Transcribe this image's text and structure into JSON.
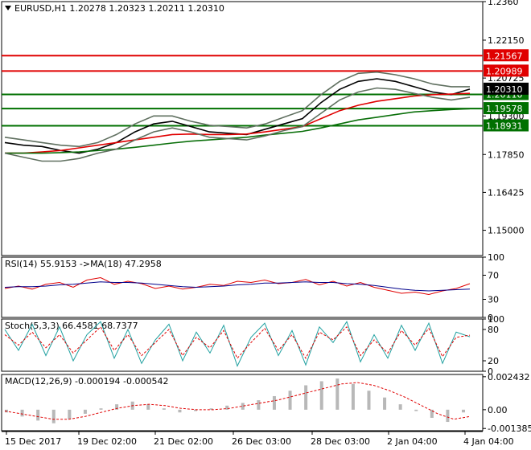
{
  "symbol_header": "EURUSD,H1  1.20278 1.20323 1.20211 1.20310",
  "chart_data": [
    {
      "type": "line",
      "title": "EURUSD,H1",
      "ohlc": {
        "open": 1.20278,
        "high": 1.20323,
        "low": 1.20211,
        "close": 1.2031
      },
      "ylim": [
        1.1405,
        1.236
      ],
      "y_ticks": [
        1.236,
        1.2215,
        1.20725,
        1.193,
        1.1785,
        1.16425,
        1.15
      ],
      "x_ticks": [
        "15 Dec 2017",
        "19 Dec 02:00",
        "21 Dec 02:00",
        "26 Dec 03:00",
        "28 Dec 03:00",
        "2 Jan 04:00",
        "4 Jan 04:00"
      ],
      "levels": [
        {
          "value": 1.21567,
          "color": "#e00000"
        },
        {
          "value": 1.20989,
          "color": "#e00000"
        },
        {
          "value": 1.2011,
          "color": "#007000"
        },
        {
          "value": 1.19578,
          "color": "#007000"
        },
        {
          "value": 1.18931,
          "color": "#007000"
        }
      ],
      "current_price": {
        "value": 1.2031
      },
      "series": [
        {
          "color": "#000000",
          "values": [
            1.183,
            1.182,
            1.1815,
            1.18,
            1.179,
            1.1805,
            1.183,
            1.187,
            1.19,
            1.191,
            1.189,
            1.187,
            1.1865,
            1.186,
            1.188,
            1.19,
            1.192,
            1.198,
            1.203,
            1.206,
            1.207,
            1.206,
            1.204,
            1.202,
            1.201,
            1.2031
          ]
        },
        {
          "color": "#e00000",
          "values": [
            1.179,
            1.179,
            1.1795,
            1.18,
            1.181,
            1.182,
            1.183,
            1.184,
            1.185,
            1.186,
            1.1862,
            1.186,
            1.186,
            1.1862,
            1.187,
            1.188,
            1.189,
            1.192,
            1.195,
            1.197,
            1.1985,
            1.1995,
            1.2005,
            1.201,
            1.2012,
            1.2015
          ]
        },
        {
          "color": "#0a6f0a",
          "values": [
            1.179,
            1.179,
            1.179,
            1.1792,
            1.1795,
            1.18,
            1.1805,
            1.1812,
            1.182,
            1.1828,
            1.1835,
            1.184,
            1.1845,
            1.185,
            1.1858,
            1.1865,
            1.1872,
            1.1885,
            1.19,
            1.1915,
            1.1925,
            1.1935,
            1.1945,
            1.195,
            1.1954,
            1.1957
          ]
        },
        {
          "color": "#607060",
          "values": [
            1.185,
            1.184,
            1.183,
            1.182,
            1.1815,
            1.183,
            1.186,
            1.19,
            1.193,
            1.193,
            1.191,
            1.1895,
            1.189,
            1.1885,
            1.19,
            1.1925,
            1.195,
            1.201,
            1.206,
            1.209,
            1.2095,
            1.2085,
            1.207,
            1.205,
            1.204,
            1.204
          ]
        },
        {
          "color": "#607060",
          "values": [
            1.179,
            1.1775,
            1.176,
            1.176,
            1.177,
            1.179,
            1.1805,
            1.184,
            1.187,
            1.1885,
            1.187,
            1.185,
            1.1845,
            1.184,
            1.1855,
            1.1875,
            1.189,
            1.194,
            1.199,
            1.202,
            1.2035,
            1.203,
            1.2015,
            1.2,
            1.199,
            1.2
          ]
        }
      ]
    },
    {
      "type": "line",
      "title": "RSI(14) 55.9153  ->MA(18) 47.2958",
      "ylim": [
        0,
        100
      ],
      "y_ticks": [
        100,
        70,
        30,
        0
      ],
      "series": [
        {
          "color": "#e00000",
          "values": [
            48,
            52,
            47,
            55,
            58,
            50,
            62,
            66,
            55,
            60,
            56,
            48,
            52,
            47,
            50,
            55,
            53,
            60,
            58,
            62,
            56,
            58,
            63,
            54,
            60,
            52,
            58,
            50,
            45,
            40,
            42,
            38,
            44,
            48,
            56
          ]
        },
        {
          "color": "#00008b",
          "values": [
            50,
            51,
            51,
            52,
            54,
            55,
            57,
            59,
            58,
            58,
            57,
            55,
            53,
            51,
            50,
            51,
            52,
            54,
            55,
            57,
            57,
            58,
            59,
            58,
            58,
            56,
            55,
            53,
            50,
            47,
            45,
            44,
            45,
            46,
            47
          ]
        }
      ]
    },
    {
      "type": "line",
      "title": "Stoch(5,3,3) 66.4581 68.7377",
      "ylim": [
        0,
        100
      ],
      "y_ticks": [
        100,
        80,
        20,
        0
      ],
      "series": [
        {
          "color": "#20a0a0",
          "values": [
            80,
            40,
            90,
            30,
            85,
            20,
            70,
            95,
            25,
            80,
            15,
            60,
            90,
            20,
            75,
            35,
            88,
            10,
            65,
            92,
            30,
            78,
            12,
            85,
            55,
            95,
            18,
            70,
            25,
            88,
            40,
            92,
            15,
            75,
            66
          ]
        },
        {
          "color": "#e00000",
          "values": [
            70,
            50,
            75,
            45,
            70,
            35,
            60,
            85,
            40,
            70,
            30,
            55,
            80,
            30,
            65,
            45,
            78,
            25,
            55,
            82,
            40,
            70,
            25,
            75,
            60,
            85,
            30,
            60,
            35,
            78,
            50,
            82,
            28,
            65,
            69
          ]
        }
      ]
    },
    {
      "type": "bar",
      "title": "MACD(12,26,9) -0.000194 -0.000542",
      "ylim": [
        -0.00155,
        0.0026
      ],
      "y_ticks": [
        0.002432,
        0.0,
        -0.001385
      ],
      "histogram": [
        -0.0002,
        -0.0005,
        -0.0008,
        -0.001,
        -0.0007,
        -0.0003,
        0.0001,
        0.0004,
        0.0006,
        0.0004,
        0.0001,
        -0.0002,
        -0.0001,
        0.0001,
        0.0003,
        0.0005,
        0.0007,
        0.001,
        0.0014,
        0.0018,
        0.0021,
        0.0023,
        0.0019,
        0.0014,
        0.0009,
        0.0004,
        -0.0001,
        -0.0006,
        -0.0009,
        -0.0002
      ],
      "series": [
        {
          "color": "#e00000",
          "values": [
            -0.0001,
            -0.0003,
            -0.0005,
            -0.0007,
            -0.0007,
            -0.0005,
            -0.0002,
            0.0001,
            0.0003,
            0.0004,
            0.0003,
            0.0001,
            0.0,
            0.0,
            0.0001,
            0.0003,
            0.0005,
            0.0007,
            0.001,
            0.0013,
            0.0016,
            0.0019,
            0.002,
            0.0018,
            0.0014,
            0.0009,
            0.0003,
            -0.0003,
            -0.0007,
            -0.0005
          ]
        }
      ]
    }
  ]
}
